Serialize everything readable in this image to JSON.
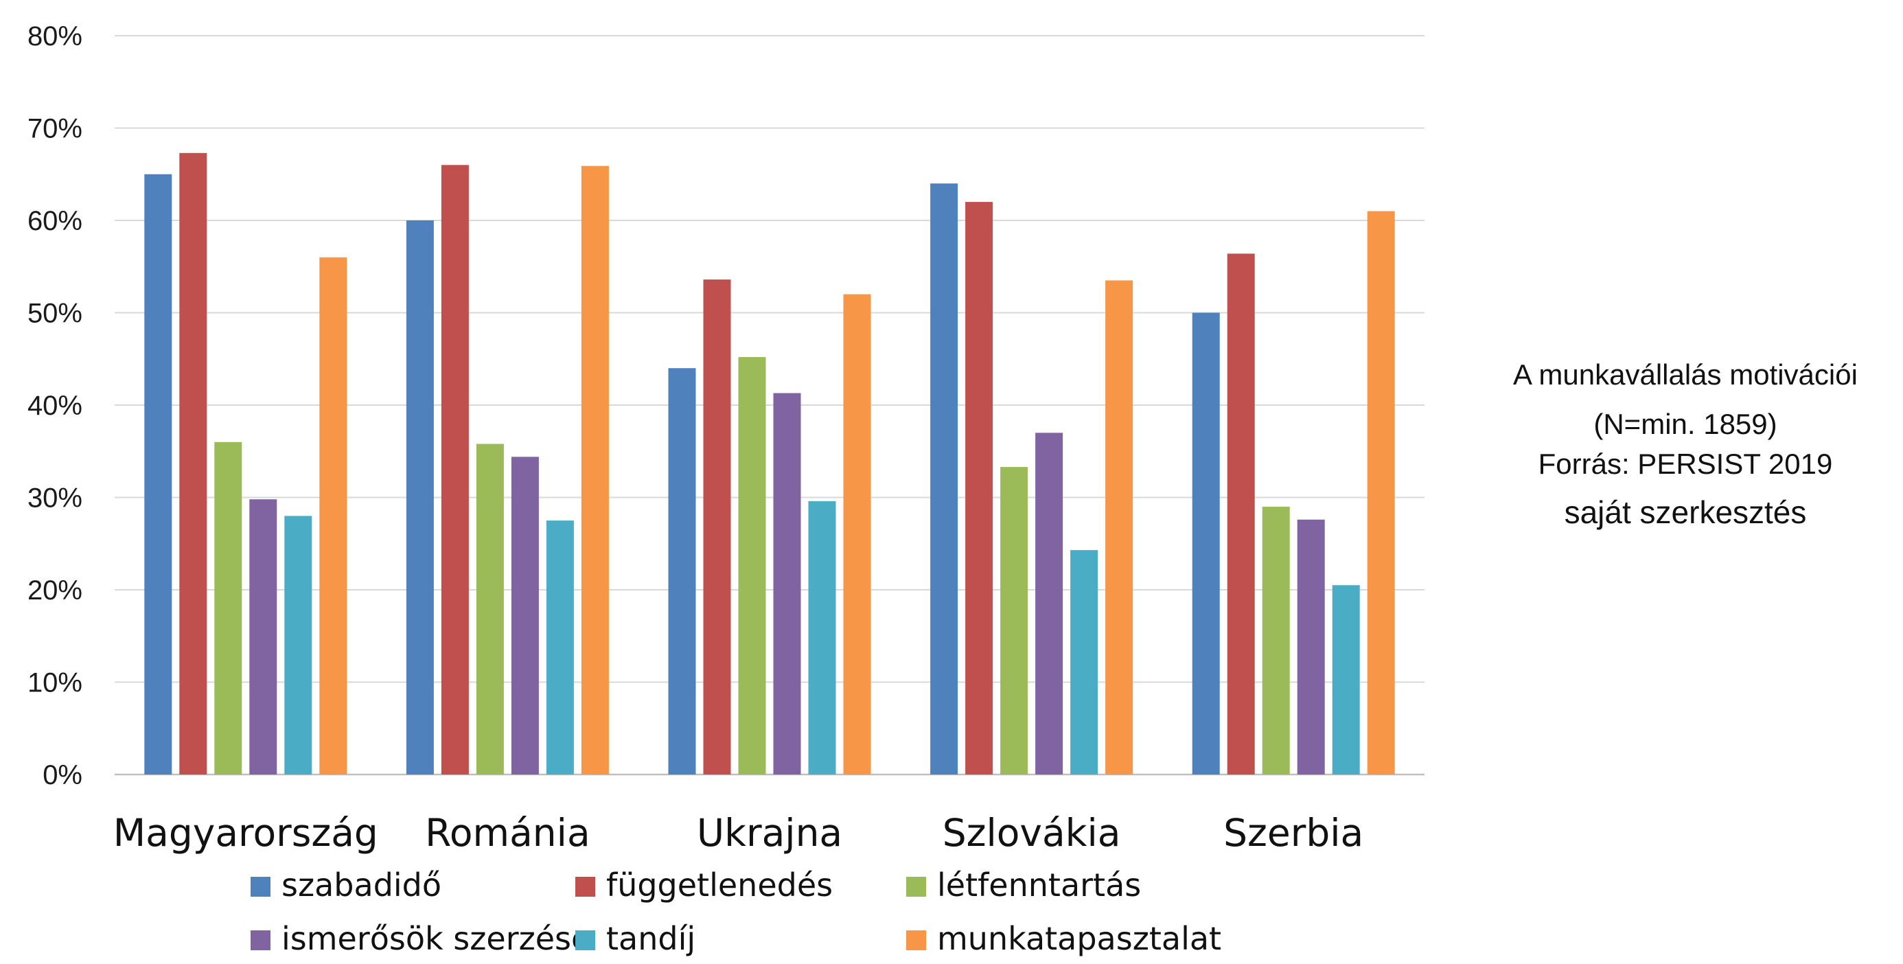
{
  "chart_data": {
    "type": "bar",
    "categories": [
      "Magyarország",
      "Románia",
      "Ukrajna",
      "Szlovákia",
      "Szerbia"
    ],
    "series": [
      {
        "name": "szabadidő",
        "color": "#4f81bd",
        "values": [
          65,
          60,
          44,
          64,
          50
        ]
      },
      {
        "name": "függetlenedés",
        "color": "#c0504d",
        "values": [
          67.3,
          66,
          53.6,
          62,
          56.4
        ]
      },
      {
        "name": "létfenntartás",
        "color": "#9bbb59",
        "values": [
          36,
          35.8,
          45.2,
          33.3,
          29
        ]
      },
      {
        "name": "ismerősök szerzése",
        "color": "#8064a2",
        "values": [
          29.8,
          34.4,
          41.3,
          37,
          27.6
        ]
      },
      {
        "name": "tandíj",
        "color": "#4bacc6",
        "values": [
          28,
          27.5,
          29.6,
          24.3,
          20.5
        ]
      },
      {
        "name": "munkatapasztalat",
        "color": "#f79646",
        "values": [
          56,
          65.9,
          52,
          53.5,
          61
        ]
      }
    ],
    "ylim": [
      0,
      80
    ],
    "yticks": [
      "0%",
      "10%",
      "20%",
      "30%",
      "40%",
      "50%",
      "60%",
      "70%",
      "80%"
    ],
    "grid": true,
    "legend_position": "bottom"
  },
  "note": {
    "lines": [
      "A munkavállalás motivációi",
      "(N=min. 1859)",
      "Forrás: PERSIST 2019",
      "saját szerkesztés"
    ]
  }
}
